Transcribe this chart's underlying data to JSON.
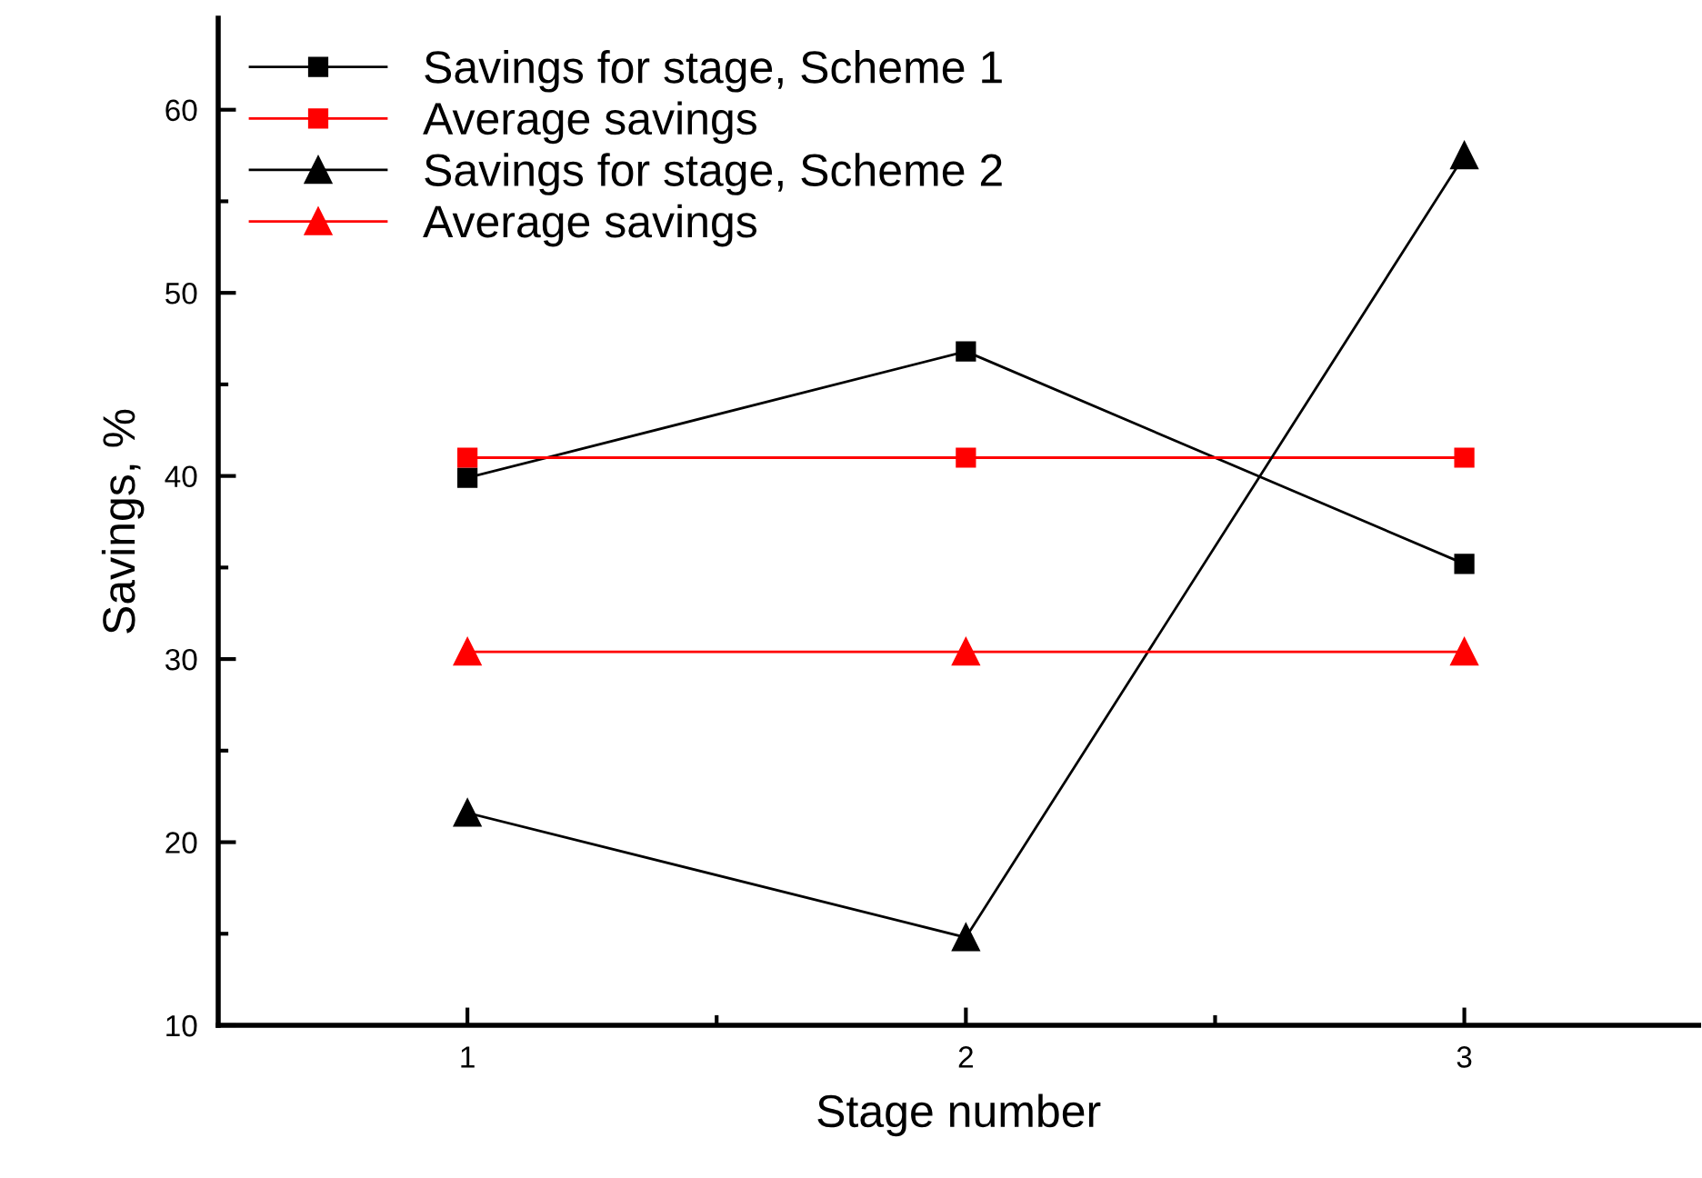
{
  "chart_data": {
    "type": "line",
    "xlabel": "Stage number",
    "ylabel": "Savings, %",
    "x": [
      1,
      2,
      3
    ],
    "series": [
      {
        "name": "Savings for stage, Scheme 1",
        "color": "#000000",
        "values": [
          39.9,
          46.8,
          35.2
        ],
        "marker": "square"
      },
      {
        "name": "Average savings",
        "color": "#ff0000",
        "values": [
          41.0,
          41.0,
          41.0
        ],
        "marker": "square"
      },
      {
        "name": "Savings for stage, Scheme 2",
        "color": "#000000",
        "values": [
          21.6,
          14.8,
          57.5
        ],
        "marker": "triangle"
      },
      {
        "name": "Average savings",
        "color": "#ff0000",
        "values": [
          30.4,
          30.4,
          30.4
        ],
        "marker": "triangle"
      }
    ],
    "xlim": [
      0.5,
      3.47
    ],
    "ylim": [
      10,
      65
    ],
    "xticks": [
      1,
      {
        "value": 1.5,
        "label": null
      },
      2,
      {
        "value": 2.5,
        "label": null
      },
      3
    ],
    "yticks": [
      10,
      {
        "value": 15,
        "label": null
      },
      20,
      {
        "value": 25,
        "label": null
      },
      30,
      {
        "value": 35,
        "label": null
      },
      40,
      {
        "value": 45,
        "label": null
      },
      50,
      {
        "value": 55,
        "label": null
      },
      60
    ],
    "grid": false,
    "legend": "top left",
    "line_style": "solid"
  }
}
